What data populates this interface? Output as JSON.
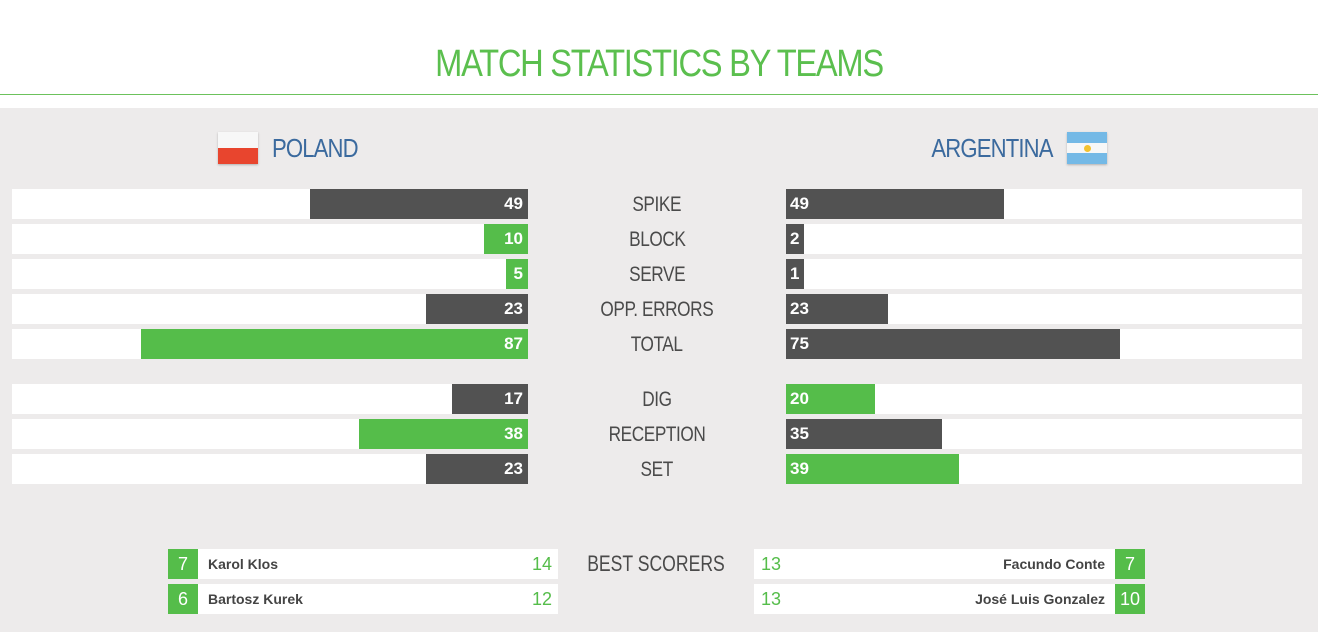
{
  "title": "MATCH STATISTICS BY TEAMS",
  "colors": {
    "accent": "#55bd4a",
    "dark": "#525252",
    "team_name": "#3b6a9e",
    "panel": "#edebeb"
  },
  "teams": {
    "left": {
      "name": "POLAND",
      "flag": "poland-flag-icon"
    },
    "right": {
      "name": "ARGENTINA",
      "flag": "argentina-flag-icon"
    }
  },
  "stats": [
    {
      "label": "SPIKE",
      "left": "49",
      "right": "49",
      "left_color": "dark",
      "right_color": "dark"
    },
    {
      "label": "BLOCK",
      "left": "10",
      "right": "2",
      "left_color": "green",
      "right_color": "dark"
    },
    {
      "label": "SERVE",
      "left": "5",
      "right": "1",
      "left_color": "green",
      "right_color": "dark"
    },
    {
      "label": "OPP. ERRORS",
      "left": "23",
      "right": "23",
      "left_color": "dark",
      "right_color": "dark"
    },
    {
      "label": "TOTAL",
      "left": "87",
      "right": "75",
      "left_color": "green",
      "right_color": "dark"
    },
    {
      "label": "DIG",
      "left": "17",
      "right": "20",
      "left_color": "dark",
      "right_color": "green"
    },
    {
      "label": "RECEPTION",
      "left": "38",
      "right": "35",
      "left_color": "green",
      "right_color": "dark"
    },
    {
      "label": "SET",
      "left": "23",
      "right": "39",
      "left_color": "dark",
      "right_color": "green"
    }
  ],
  "best_scorers": {
    "label": "BEST SCORERS",
    "left": [
      {
        "number": "7",
        "name": "Karol Klos",
        "points": "14"
      },
      {
        "number": "6",
        "name": "Bartosz Kurek",
        "points": "12"
      }
    ],
    "right": [
      {
        "number": "7",
        "name": "Facundo Conte",
        "points": "13"
      },
      {
        "number": "10",
        "name": "José Luis Gonzalez",
        "points": "13"
      }
    ]
  }
}
